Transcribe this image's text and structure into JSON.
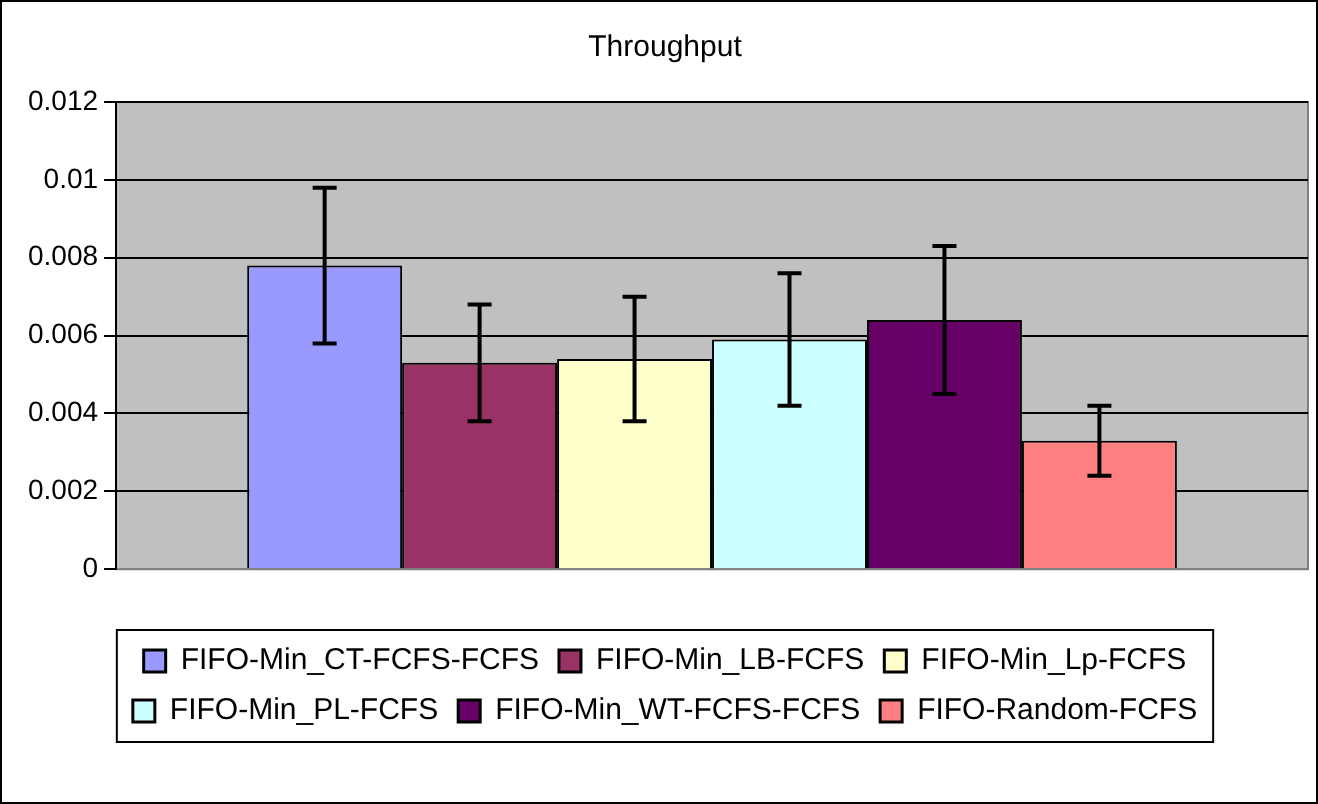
{
  "chart_data": {
    "type": "bar",
    "title": "Throughput",
    "categories": [
      null
    ],
    "series": [
      {
        "name": "FIFO-Min_CT-FCFS-FCFS",
        "color": "#9999ff",
        "values": [
          0.0078
        ],
        "errors": [
          0.002
        ]
      },
      {
        "name": "FIFO-Min_LB-FCFS",
        "color": "#993366",
        "values": [
          0.0053
        ],
        "errors": [
          0.0015
        ]
      },
      {
        "name": "FIFO-Min_Lp-FCFS",
        "color": "#ffffcc",
        "values": [
          0.0054
        ],
        "errors": [
          0.0016
        ]
      },
      {
        "name": "FIFO-Min_PL-FCFS",
        "color": "#ccffff",
        "values": [
          0.0059
        ],
        "errors": [
          0.0017
        ]
      },
      {
        "name": "FIFO-Min_WT-FCFS-FCFS",
        "color": "#660066",
        "values": [
          0.0064
        ],
        "errors": [
          0.0019
        ]
      },
      {
        "name": "FIFO-Random-FCFS",
        "color": "#ff8080",
        "values": [
          0.0033
        ],
        "errors": [
          0.0009
        ]
      }
    ],
    "ylim": [
      0,
      0.012
    ],
    "yticks": [
      0,
      0.002,
      0.004,
      0.006,
      0.008,
      0.01,
      0.012
    ],
    "grid": "y",
    "legend": "bottom"
  }
}
